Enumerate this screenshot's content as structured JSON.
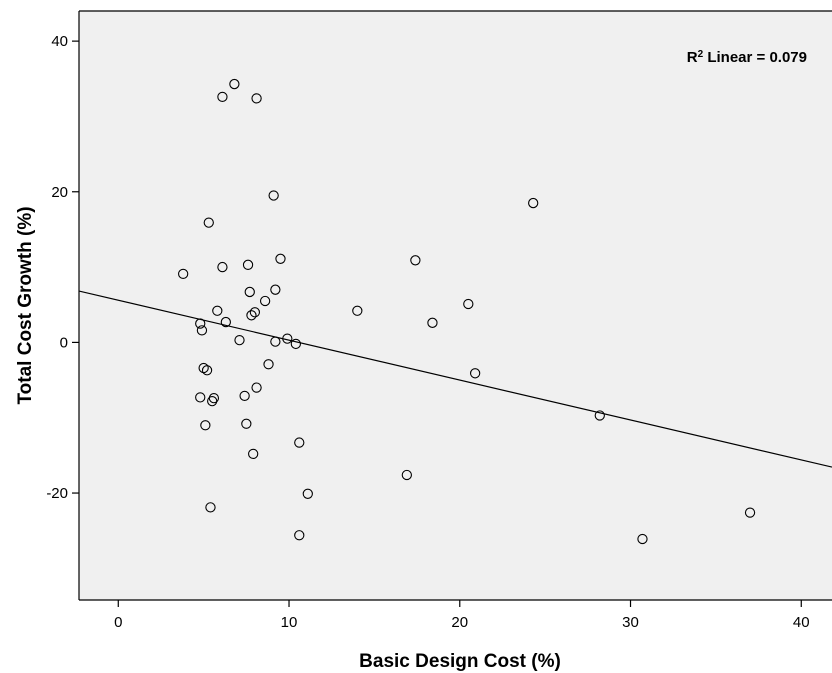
{
  "chart_data": {
    "type": "scatter",
    "xlabel": "Basic Design Cost (%)",
    "ylabel": "Total Cost Growth (%)",
    "xlim": [
      -2.3,
      41.8
    ],
    "ylim": [
      -34.2,
      44
    ],
    "xticks": [
      0,
      10,
      20,
      30,
      40
    ],
    "yticks": [
      -20,
      0,
      20,
      40
    ],
    "grid": false,
    "plot_background": "#f0f0f0",
    "annotation": {
      "prefix": "R",
      "superscript": "2",
      "suffix": " Linear = 0.079"
    },
    "fit_line": {
      "intercept": 5.6,
      "slope": -0.53
    },
    "points": [
      {
        "x": 6.8,
        "y": 34.3
      },
      {
        "x": 6.1,
        "y": 32.6
      },
      {
        "x": 8.1,
        "y": 32.4
      },
      {
        "x": 9.1,
        "y": 19.5
      },
      {
        "x": 24.3,
        "y": 18.5
      },
      {
        "x": 5.3,
        "y": 15.9
      },
      {
        "x": 9.5,
        "y": 11.1
      },
      {
        "x": 17.4,
        "y": 10.9
      },
      {
        "x": 7.6,
        "y": 10.3
      },
      {
        "x": 6.1,
        "y": 10.0
      },
      {
        "x": 3.8,
        "y": 9.1
      },
      {
        "x": 7.7,
        "y": 6.7
      },
      {
        "x": 9.2,
        "y": 7.0
      },
      {
        "x": 8.6,
        "y": 5.5
      },
      {
        "x": 20.5,
        "y": 5.1
      },
      {
        "x": 5.8,
        "y": 4.2
      },
      {
        "x": 14.0,
        "y": 4.2
      },
      {
        "x": 8.0,
        "y": 4.0
      },
      {
        "x": 7.8,
        "y": 3.6
      },
      {
        "x": 4.8,
        "y": 2.5
      },
      {
        "x": 6.3,
        "y": 2.7
      },
      {
        "x": 18.4,
        "y": 2.6
      },
      {
        "x": 4.9,
        "y": 1.6
      },
      {
        "x": 9.9,
        "y": 0.5
      },
      {
        "x": 7.1,
        "y": 0.3
      },
      {
        "x": 9.2,
        "y": 0.1
      },
      {
        "x": 10.4,
        "y": -0.2
      },
      {
        "x": 8.8,
        "y": -2.9
      },
      {
        "x": 5.0,
        "y": -3.4
      },
      {
        "x": 5.2,
        "y": -3.7
      },
      {
        "x": 20.9,
        "y": -4.1
      },
      {
        "x": 8.1,
        "y": -6.0
      },
      {
        "x": 4.8,
        "y": -7.3
      },
      {
        "x": 5.6,
        "y": -7.4
      },
      {
        "x": 7.4,
        "y": -7.1
      },
      {
        "x": 5.5,
        "y": -7.8
      },
      {
        "x": 28.2,
        "y": -9.7
      },
      {
        "x": 5.1,
        "y": -11.0
      },
      {
        "x": 7.5,
        "y": -10.8
      },
      {
        "x": 10.6,
        "y": -13.3
      },
      {
        "x": 7.9,
        "y": -14.8
      },
      {
        "x": 16.9,
        "y": -17.6
      },
      {
        "x": 11.1,
        "y": -20.1
      },
      {
        "x": 5.4,
        "y": -21.9
      },
      {
        "x": 37.0,
        "y": -22.6
      },
      {
        "x": 10.6,
        "y": -25.6
      },
      {
        "x": 30.7,
        "y": -26.1
      }
    ]
  }
}
